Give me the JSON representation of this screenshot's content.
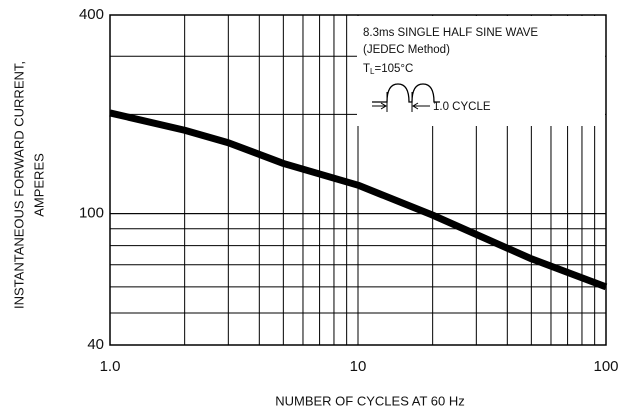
{
  "chart_data": {
    "type": "line",
    "x_label": "NUMBER OF CYCLES AT 60 Hz",
    "y_label": [
      "INSTANTANEOUS FORWARD CURRENT,",
      "AMPERES"
    ],
    "x": [
      1,
      2,
      3,
      5,
      10,
      20,
      50,
      100
    ],
    "values": [
      202,
      179,
      164,
      142,
      122,
      99,
      73,
      60
    ],
    "color": "#000000",
    "xscale": "log",
    "yscale": "log",
    "xlim": [
      1,
      100
    ],
    "ylim": [
      40,
      400
    ],
    "xticks": [
      {
        "value": 1,
        "label": "1.0"
      },
      10,
      100
    ],
    "yticks": [
      40,
      100,
      400
    ],
    "grid": true,
    "annotation": {
      "lines": [
        "8.3ms SINGLE HALF SINE WAVE",
        "(JEDEC Method)"
      ],
      "temp": {
        "main": "T",
        "sub": "L",
        "rest": "=105°C"
      },
      "cycle": "1.0 CYCLE"
    }
  }
}
